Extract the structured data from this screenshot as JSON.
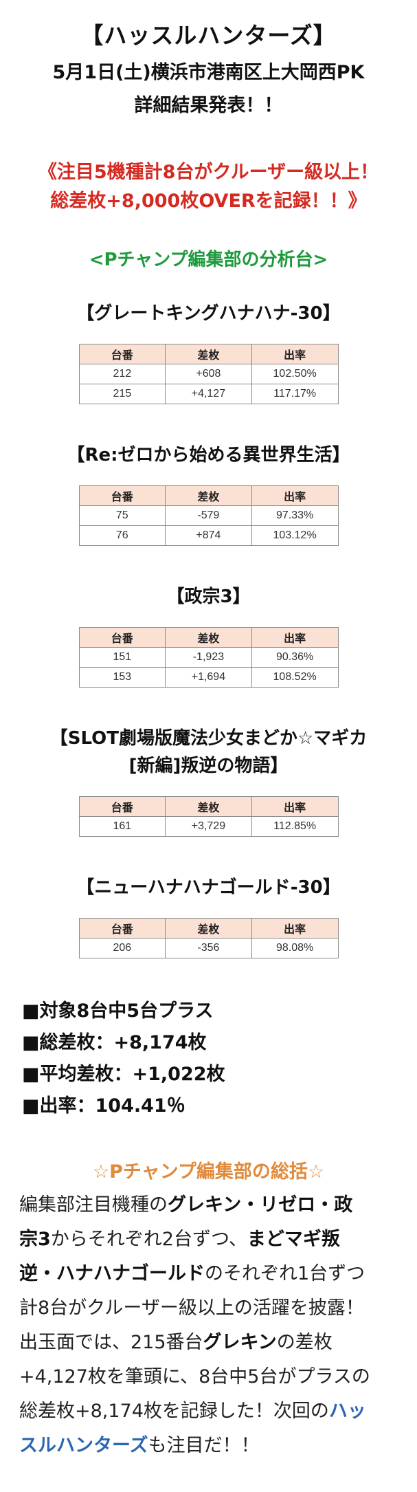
{
  "header": {
    "store_name": "【ハッスルハンターズ】",
    "date_location": "5月1日(土)横浜市港南区上大岡西PK",
    "subtitle": "詳細結果発表！！"
  },
  "highlight": {
    "line1": "《注目5機種計8台がクルーザー級以上！",
    "line2": "総差枚+8,000枚OVERを記録！！》"
  },
  "analysis_heading": "<Pチャンプ編集部の分析台>",
  "table_headers": [
    "台番",
    "差枚",
    "出率"
  ],
  "machines": [
    {
      "title_lines": [
        "【グレートキングハナハナ-30】"
      ],
      "rows": [
        [
          "212",
          "+608",
          "102.50%"
        ],
        [
          "215",
          "+4,127",
          "117.17%"
        ]
      ]
    },
    {
      "title_lines": [
        "【Re:ゼロから始める異世界生活】"
      ],
      "rows": [
        [
          "75",
          "-579",
          "97.33%"
        ],
        [
          "76",
          "+874",
          "103.12%"
        ]
      ]
    },
    {
      "title_lines": [
        "【政宗3】"
      ],
      "rows": [
        [
          "151",
          "-1,923",
          "90.36%"
        ],
        [
          "153",
          "+1,694",
          "108.52%"
        ]
      ]
    },
    {
      "title_lines": [
        "【SLOT劇場版魔法少女まどか☆マギカ",
        "[新編]叛逆の物語】"
      ],
      "rows": [
        [
          "161",
          "+3,729",
          "112.85%"
        ]
      ]
    },
    {
      "title_lines": [
        "【ニューハナハナゴールド-30】"
      ],
      "rows": [
        [
          "206",
          "-356",
          "98.08%"
        ]
      ]
    }
  ],
  "summary": {
    "plus_count": "■対象8台中5台プラス",
    "total_diff": "■総差枚：+8,174枚",
    "avg_diff": "■平均差枚：+1,022枚",
    "payout_rate": "■出率：104.41％"
  },
  "comment_heading": "☆Pチャンプ編集部の総括☆",
  "comment": {
    "l1_a": "編集部注目機種の",
    "l1_b": "グレキン・リゼロ・政",
    "l2_a": "宗3",
    "l2_b": "からそれぞれ2台ずつ、",
    "l2_c": "まどマギ叛",
    "l3_a": "逆・ハナハナゴールド",
    "l3_b": "のそれぞれ1台ずつ",
    "l4": "計8台がクルーザー級以上の活躍を披露！",
    "l5_a": "出玉面では、215番台",
    "l5_b": "グレキン",
    "l5_c": "の差枚",
    "l6": "+4,127枚を筆頭に、8台中5台がプラスの",
    "l7_a": "総差枚+8,174枚を記録した！次回の",
    "l7_b": "ハッ",
    "l8_a": "スルハンターズ",
    "l8_b": "も注目だ！！"
  },
  "colors": {
    "highlight_red": "#d42a22",
    "analysis_green": "#1c9a3c",
    "comment_orange": "#e08a3c",
    "store_blue": "#2b67b0",
    "table_header_bg": "#fbe1d4"
  }
}
